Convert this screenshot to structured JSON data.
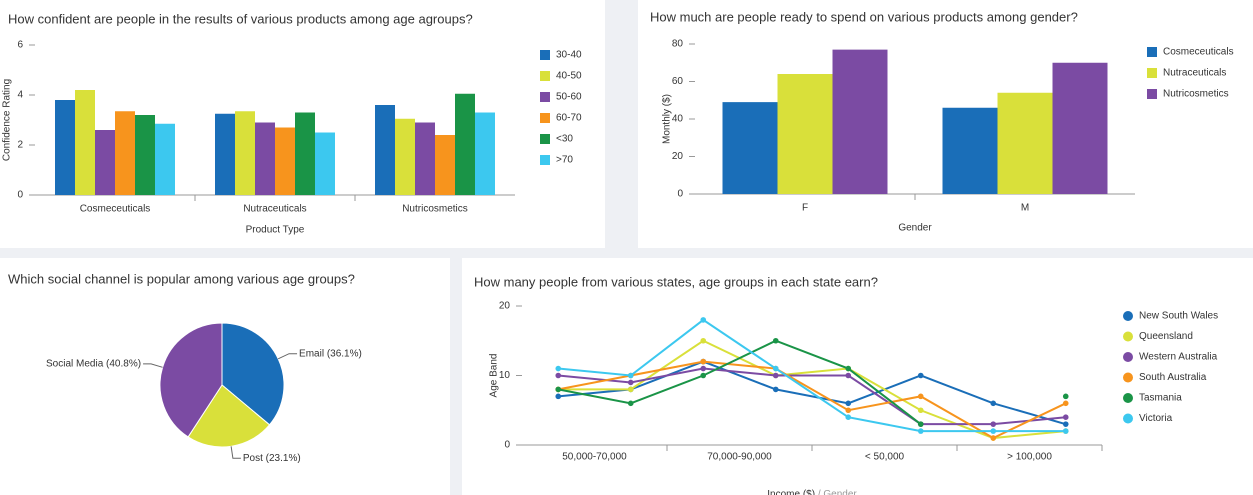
{
  "chart_data": [
    {
      "type": "bar",
      "title": "How confident are people in the results of various products among age agroups?",
      "x_label": "Product Type",
      "y_label": "Confidence Rating",
      "categories": [
        "Cosmeceuticals",
        "Nutraceuticals",
        "Nutricosmetics"
      ],
      "series": [
        {
          "name": "30-40",
          "color": "#1a6eb8",
          "values": [
            3.8,
            3.25,
            3.6
          ]
        },
        {
          "name": "40-50",
          "color": "#d9e03a",
          "values": [
            4.2,
            3.35,
            3.05
          ]
        },
        {
          "name": "50-60",
          "color": "#7b4ba3",
          "values": [
            2.6,
            2.9,
            2.9
          ]
        },
        {
          "name": "60-70",
          "color": "#f7941d",
          "values": [
            3.35,
            2.7,
            2.4
          ]
        },
        {
          "name": "<30",
          "color": "#1a9447",
          "values": [
            3.2,
            3.3,
            4.05
          ]
        },
        {
          "name": ">70",
          "color": "#3cc8ef",
          "values": [
            2.85,
            2.5,
            3.3
          ]
        }
      ],
      "ylim": [
        0,
        6
      ],
      "yticks": [
        0,
        2,
        4,
        6
      ],
      "grid": false,
      "legend": "right"
    },
    {
      "type": "bar",
      "title": "How much are people ready to spend on various products among gender?",
      "x_label": "Gender",
      "y_label": "Monthly ($)",
      "categories": [
        "F",
        "M"
      ],
      "series": [
        {
          "name": "Cosmeceuticals",
          "color": "#1a6eb8",
          "values": [
            49,
            46
          ]
        },
        {
          "name": "Nutraceuticals",
          "color": "#d9e03a",
          "values": [
            64,
            54
          ]
        },
        {
          "name": "Nutricosmetics",
          "color": "#7b4ba3",
          "values": [
            77,
            70
          ]
        }
      ],
      "ylim": [
        0,
        80
      ],
      "yticks": [
        0,
        20,
        40,
        60,
        80
      ],
      "grid": false,
      "legend": "right"
    },
    {
      "type": "pie",
      "title": "Which social channel is popular among various age groups?",
      "categories": [
        "Email",
        "Post",
        "Social Media"
      ],
      "values": [
        36.1,
        23.1,
        40.8
      ],
      "value_labels": [
        "Email (36.1%)",
        "Post (23.1%)",
        "Social Media (40.8%)"
      ],
      "colors": [
        "#1a6eb8",
        "#d9e03a",
        "#7b4ba3"
      ]
    },
    {
      "type": "line",
      "title": "How many people from various states, age groups in each state earn?",
      "x_label": "Income ($)",
      "x_label_secondary": "/ Gender",
      "y_label": "Age Band",
      "category_groups": [
        "50,000-70,000",
        "70,000-90,000",
        "< 50,000",
        "> 100,000"
      ],
      "categories": [
        null,
        null,
        null,
        null,
        null,
        null,
        null,
        null
      ],
      "series": [
        {
          "name": "New South Wales",
          "color": "#1a6eb8",
          "values": [
            7,
            8,
            12,
            8,
            6,
            10,
            6,
            3
          ]
        },
        {
          "name": "Queensland",
          "color": "#d9e03a",
          "values": [
            8,
            8,
            15,
            10,
            11,
            5,
            1,
            2
          ]
        },
        {
          "name": "Western Australia",
          "color": "#7b4ba3",
          "values": [
            10,
            9,
            11,
            10,
            10,
            3,
            3,
            4
          ]
        },
        {
          "name": "South Australia",
          "color": "#f7941d",
          "values": [
            8,
            10,
            12,
            11,
            5,
            7,
            1,
            6
          ]
        },
        {
          "name": "Tasmania",
          "color": "#1a9447",
          "values": [
            8,
            6,
            10,
            15,
            11,
            3,
            null,
            7
          ]
        },
        {
          "name": "Victoria",
          "color": "#3cc8ef",
          "values": [
            11,
            10,
            18,
            11,
            4,
            2,
            2,
            2
          ]
        }
      ],
      "ylim": [
        0,
        20
      ],
      "yticks": [
        0,
        10,
        20
      ],
      "grid": false,
      "legend": "right"
    }
  ]
}
